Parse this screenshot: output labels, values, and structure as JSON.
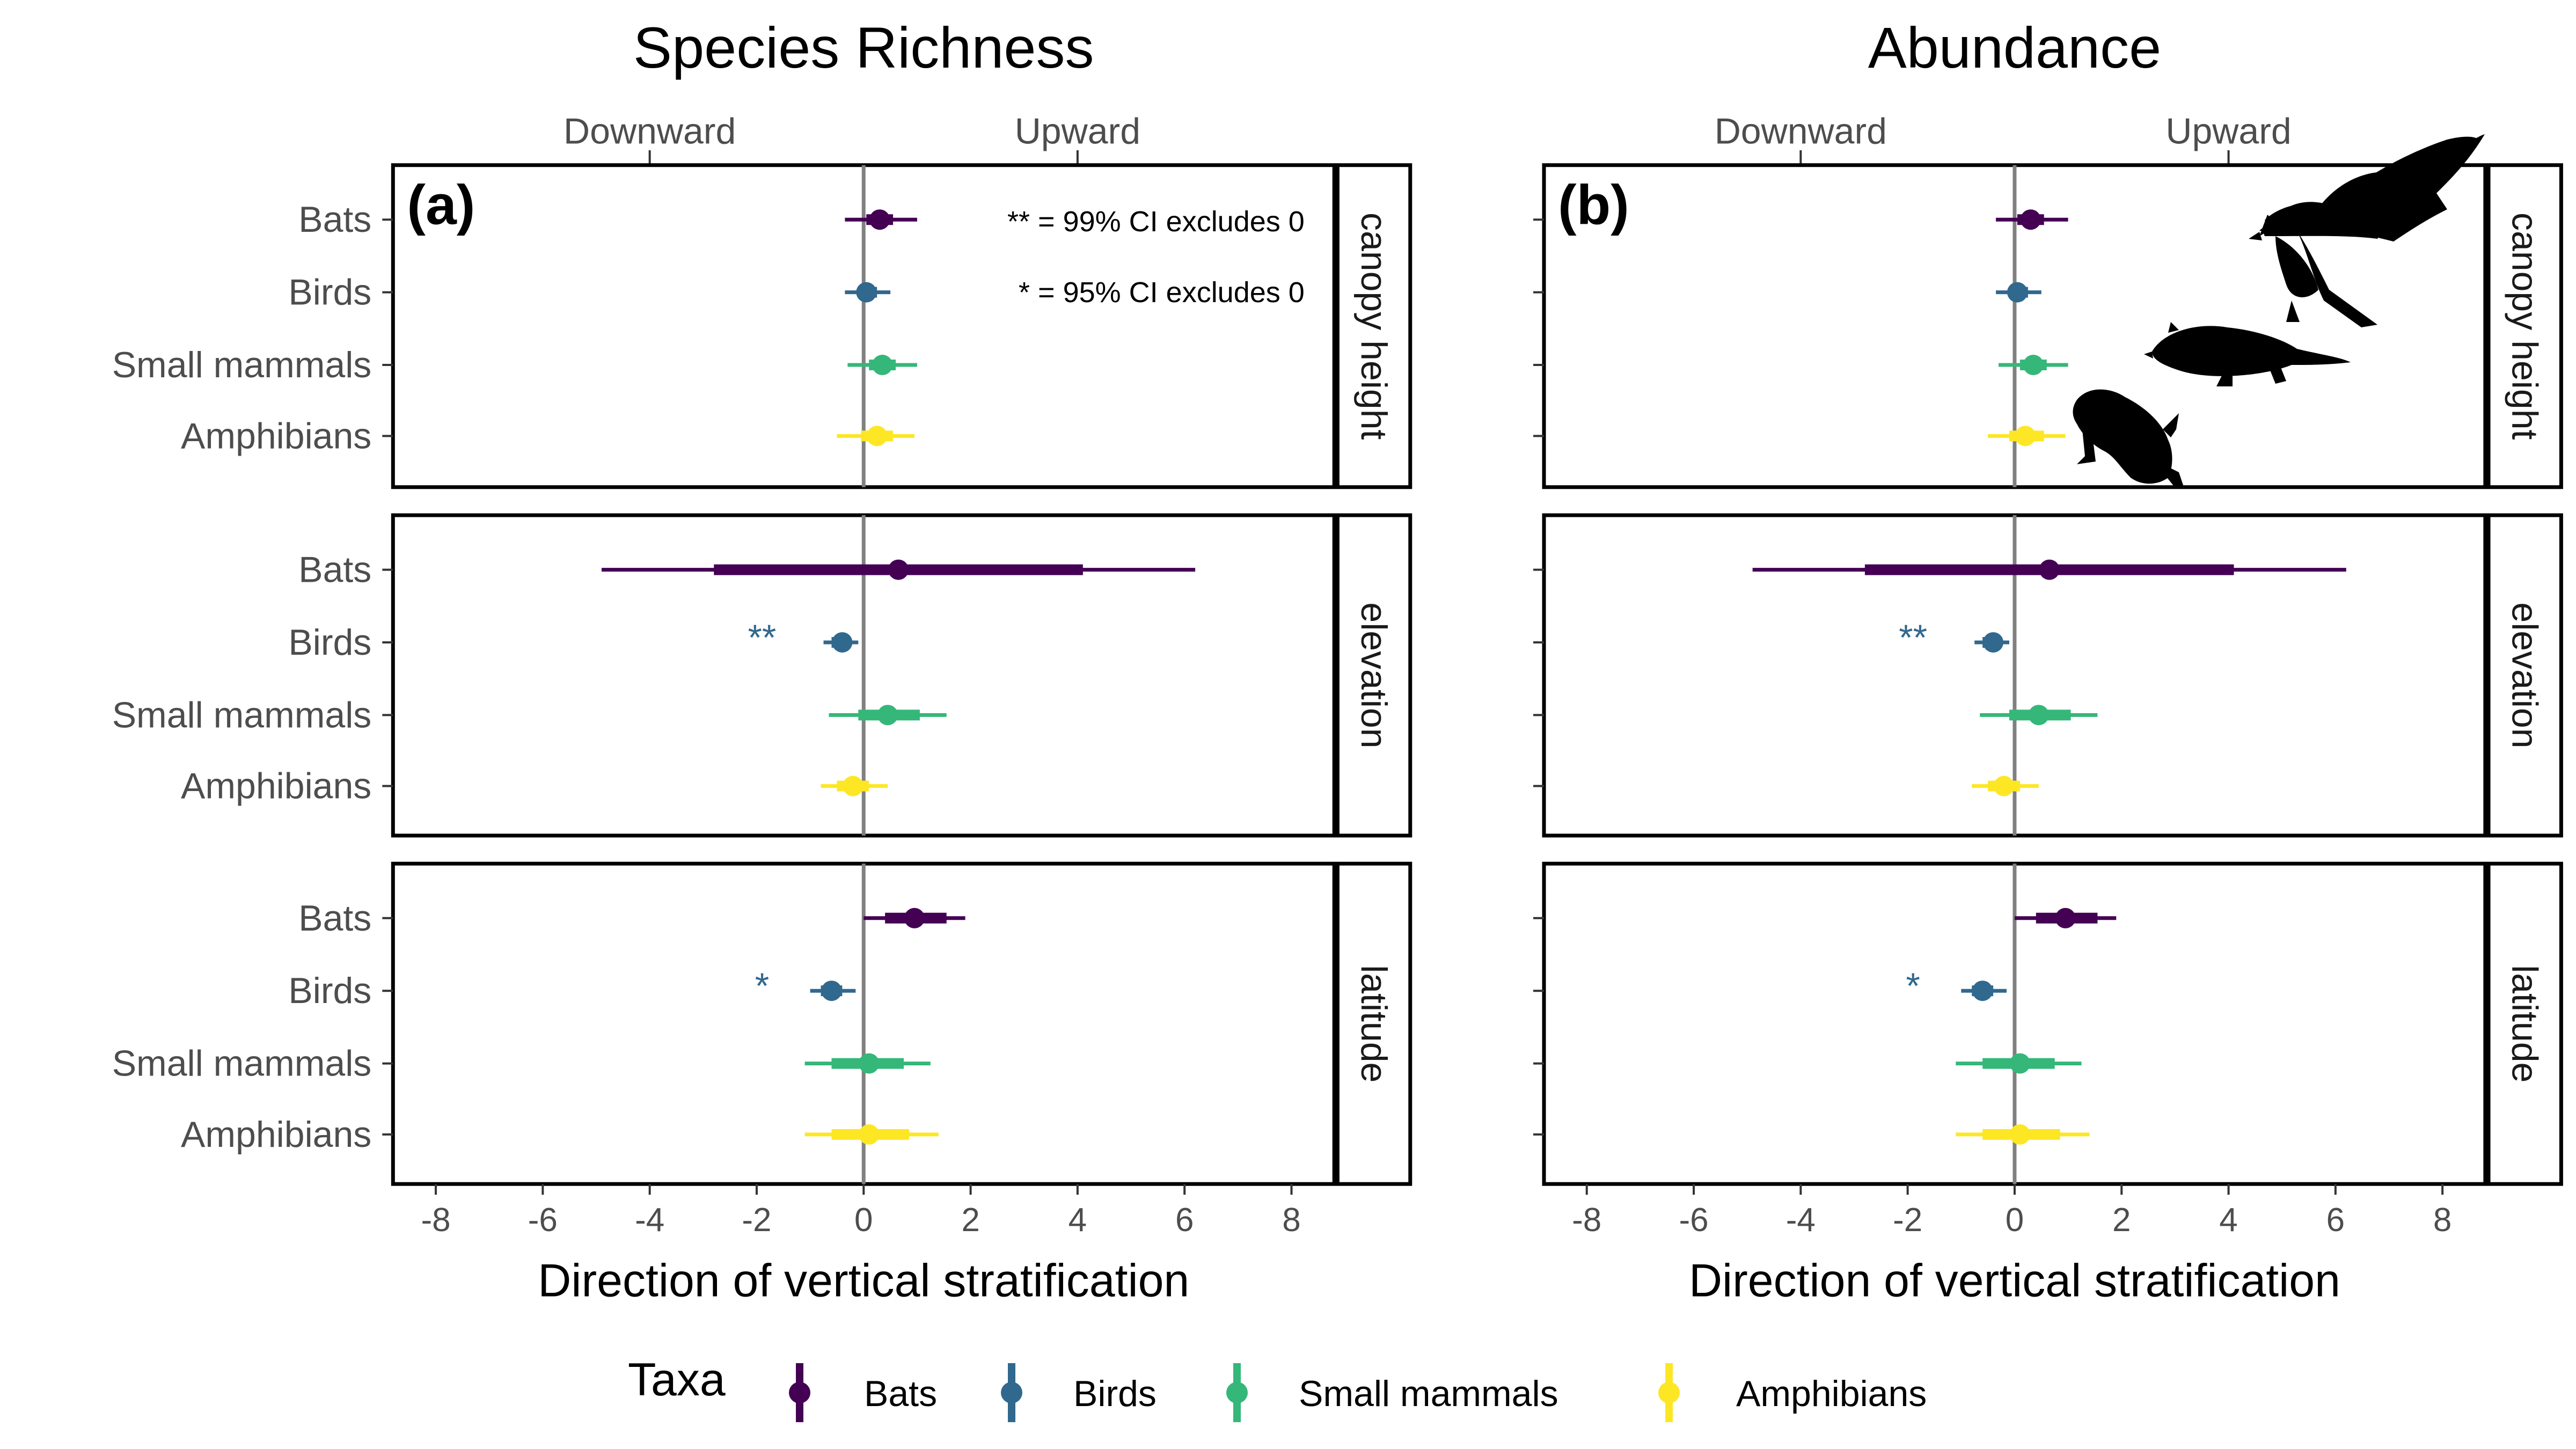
{
  "colors": {
    "Bats": "#440154",
    "Birds": "#31688e",
    "Small mammals": "#35b779",
    "Amphibians": "#fde725",
    "zero_line": "#808080",
    "text": "#4d4d4d"
  },
  "panels": [
    {
      "title": "Species Richness",
      "tag": "(a)"
    },
    {
      "title": "Abundance",
      "tag": "(b)"
    }
  ],
  "direction_labels": {
    "down": "Downward",
    "up": "Upward"
  },
  "facets": [
    "canopy height",
    "elevation",
    "latitude"
  ],
  "taxa": [
    "Bats",
    "Birds",
    "Small mammals",
    "Amphibians"
  ],
  "note_99": "** = 99% CI excludes 0",
  "note_95": "* = 95% CI excludes 0",
  "legend": {
    "title": "Taxa",
    "items": [
      "Bats",
      "Birds",
      "Small mammals",
      "Amphibians"
    ]
  },
  "silhouettes": [
    "bat-silhouette",
    "bird-silhouette",
    "small-mammal-silhouette",
    "frog-silhouette"
  ],
  "chart_data": [
    {
      "type": "scatter",
      "title": "Species Richness",
      "tag": "(a)",
      "xlabel": "Direction of vertical stratification",
      "xlim": [
        -8.8,
        8.8
      ],
      "xticks": [
        -8,
        -6,
        -4,
        -2,
        0,
        2,
        4,
        6,
        8
      ],
      "top_axis": {
        "Downward": -4,
        "Upward": 4
      },
      "grid": false,
      "legend_position": "bottom",
      "facets": [
        {
          "name": "canopy height",
          "rows": [
            {
              "taxon": "Bats",
              "estimate": 0.3,
              "ci95": [
                -0.35,
                1.0
              ],
              "ci_inner": [
                0.05,
                0.55
              ],
              "sig": ""
            },
            {
              "taxon": "Birds",
              "estimate": 0.05,
              "ci95": [
                -0.35,
                0.5
              ],
              "ci_inner": [
                -0.1,
                0.25
              ],
              "sig": ""
            },
            {
              "taxon": "Small mammals",
              "estimate": 0.35,
              "ci95": [
                -0.3,
                1.0
              ],
              "ci_inner": [
                0.1,
                0.6
              ],
              "sig": ""
            },
            {
              "taxon": "Amphibians",
              "estimate": 0.25,
              "ci95": [
                -0.5,
                0.95
              ],
              "ci_inner": [
                -0.05,
                0.55
              ],
              "sig": ""
            }
          ]
        },
        {
          "name": "elevation",
          "rows": [
            {
              "taxon": "Bats",
              "estimate": 0.65,
              "ci95": [
                -4.9,
                6.2
              ],
              "ci_inner": [
                -2.8,
                4.1
              ],
              "sig": ""
            },
            {
              "taxon": "Birds",
              "estimate": -0.4,
              "ci95": [
                -0.75,
                -0.1
              ],
              "ci_inner": [
                -0.6,
                -0.25
              ],
              "sig": "**"
            },
            {
              "taxon": "Small mammals",
              "estimate": 0.45,
              "ci95": [
                -0.65,
                1.55
              ],
              "ci_inner": [
                -0.1,
                1.05
              ],
              "sig": ""
            },
            {
              "taxon": "Amphibians",
              "estimate": -0.2,
              "ci95": [
                -0.8,
                0.45
              ],
              "ci_inner": [
                -0.5,
                0.1
              ],
              "sig": ""
            }
          ]
        },
        {
          "name": "latitude",
          "rows": [
            {
              "taxon": "Bats",
              "estimate": 0.95,
              "ci95": [
                0.0,
                1.9
              ],
              "ci_inner": [
                0.4,
                1.55
              ],
              "sig": ""
            },
            {
              "taxon": "Birds",
              "estimate": -0.6,
              "ci95": [
                -1.0,
                -0.15
              ],
              "ci_inner": [
                -0.8,
                -0.4
              ],
              "sig": "*"
            },
            {
              "taxon": "Small mammals",
              "estimate": 0.1,
              "ci95": [
                -1.1,
                1.25
              ],
              "ci_inner": [
                -0.6,
                0.75
              ],
              "sig": ""
            },
            {
              "taxon": "Amphibians",
              "estimate": 0.1,
              "ci95": [
                -1.1,
                1.4
              ],
              "ci_inner": [
                -0.6,
                0.85
              ],
              "sig": ""
            }
          ]
        }
      ]
    },
    {
      "type": "scatter",
      "title": "Abundance",
      "tag": "(b)",
      "xlabel": "Direction of vertical stratification",
      "xlim": [
        -8.8,
        8.8
      ],
      "xticks": [
        -8,
        -6,
        -4,
        -2,
        0,
        2,
        4,
        6,
        8
      ],
      "top_axis": {
        "Downward": -4,
        "Upward": 4
      },
      "grid": false,
      "legend_position": "bottom",
      "facets": [
        {
          "name": "canopy height",
          "rows": [
            {
              "taxon": "Bats",
              "estimate": 0.3,
              "ci95": [
                -0.35,
                1.0
              ],
              "ci_inner": [
                0.05,
                0.55
              ],
              "sig": ""
            },
            {
              "taxon": "Birds",
              "estimate": 0.05,
              "ci95": [
                -0.35,
                0.5
              ],
              "ci_inner": [
                -0.1,
                0.25
              ],
              "sig": ""
            },
            {
              "taxon": "Small mammals",
              "estimate": 0.35,
              "ci95": [
                -0.3,
                1.0
              ],
              "ci_inner": [
                0.1,
                0.6
              ],
              "sig": ""
            },
            {
              "taxon": "Amphibians",
              "estimate": 0.2,
              "ci95": [
                -0.5,
                0.95
              ],
              "ci_inner": [
                -0.1,
                0.55
              ],
              "sig": ""
            }
          ]
        },
        {
          "name": "elevation",
          "rows": [
            {
              "taxon": "Bats",
              "estimate": 0.65,
              "ci95": [
                -4.9,
                6.2
              ],
              "ci_inner": [
                -2.8,
                4.1
              ],
              "sig": ""
            },
            {
              "taxon": "Birds",
              "estimate": -0.4,
              "ci95": [
                -0.75,
                -0.1
              ],
              "ci_inner": [
                -0.6,
                -0.25
              ],
              "sig": "**"
            },
            {
              "taxon": "Small mammals",
              "estimate": 0.45,
              "ci95": [
                -0.65,
                1.55
              ],
              "ci_inner": [
                -0.1,
                1.05
              ],
              "sig": ""
            },
            {
              "taxon": "Amphibians",
              "estimate": -0.2,
              "ci95": [
                -0.8,
                0.45
              ],
              "ci_inner": [
                -0.5,
                0.1
              ],
              "sig": ""
            }
          ]
        },
        {
          "name": "latitude",
          "rows": [
            {
              "taxon": "Bats",
              "estimate": 0.95,
              "ci95": [
                0.0,
                1.9
              ],
              "ci_inner": [
                0.4,
                1.55
              ],
              "sig": ""
            },
            {
              "taxon": "Birds",
              "estimate": -0.6,
              "ci95": [
                -1.0,
                -0.15
              ],
              "ci_inner": [
                -0.8,
                -0.4
              ],
              "sig": "*"
            },
            {
              "taxon": "Small mammals",
              "estimate": 0.1,
              "ci95": [
                -1.1,
                1.25
              ],
              "ci_inner": [
                -0.6,
                0.75
              ],
              "sig": ""
            },
            {
              "taxon": "Amphibians",
              "estimate": 0.1,
              "ci95": [
                -1.1,
                1.4
              ],
              "ci_inner": [
                -0.6,
                0.85
              ],
              "sig": ""
            }
          ]
        }
      ]
    }
  ]
}
